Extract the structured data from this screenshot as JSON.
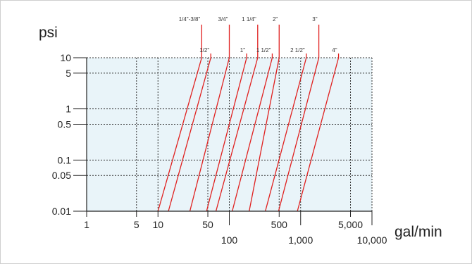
{
  "chart_data": {
    "type": "line",
    "title": "",
    "ylabel": "psi",
    "xlabel": "gal/min",
    "x_scale": "log",
    "y_scale": "log",
    "xlim": [
      1,
      10000
    ],
    "ylim": [
      0.01,
      10
    ],
    "grid": true,
    "x_ticks": [
      {
        "value": 1,
        "label": "1"
      },
      {
        "value": 5,
        "label": "5"
      },
      {
        "value": 10,
        "label": "10"
      },
      {
        "value": 50,
        "label": "50"
      },
      {
        "value": 100,
        "label": "100"
      },
      {
        "value": 500,
        "label": "500"
      },
      {
        "value": 1000,
        "label": "1,000"
      },
      {
        "value": 5000,
        "label": "5,000"
      },
      {
        "value": 10000,
        "label": "10,000"
      }
    ],
    "y_ticks": [
      {
        "value": 0.01,
        "label": "0.01"
      },
      {
        "value": 0.05,
        "label": "0.05"
      },
      {
        "value": 0.1,
        "label": "0.1"
      },
      {
        "value": 0.5,
        "label": "0.5"
      },
      {
        "value": 1,
        "label": "1"
      },
      {
        "value": 5,
        "label": "5"
      },
      {
        "value": 10,
        "label": "10"
      }
    ],
    "series": [
      {
        "name": "1/4\"-3/8\"",
        "points": [
          [
            10,
            0.01
          ],
          [
            41,
            10
          ]
        ],
        "label_row": "upper"
      },
      {
        "name": "1/2\"",
        "points": [
          [
            14,
            0.01
          ],
          [
            55,
            10
          ]
        ],
        "label_row": "lower"
      },
      {
        "name": "3/4\"",
        "points": [
          [
            28,
            0.01
          ],
          [
            100,
            10
          ]
        ],
        "label_row": "upper"
      },
      {
        "name": "1\"",
        "points": [
          [
            48,
            0.01
          ],
          [
            175,
            10
          ]
        ],
        "label_row": "lower"
      },
      {
        "name": "1 1/4\"",
        "points": [
          [
            65,
            0.01
          ],
          [
            250,
            10
          ]
        ],
        "label_row": "upper"
      },
      {
        "name": "1 1/2\"",
        "points": [
          [
            110,
            0.01
          ],
          [
            400,
            10
          ]
        ],
        "label_row": "lower"
      },
      {
        "name": "2\"",
        "points": [
          [
            190,
            0.01
          ],
          [
            500,
            10
          ]
        ],
        "label_row": "upper"
      },
      {
        "name": "2 1/2\"",
        "points": [
          [
            320,
            0.01
          ],
          [
            1200,
            10
          ]
        ],
        "label_row": "lower"
      },
      {
        "name": "3\"",
        "points": [
          [
            490,
            0.01
          ],
          [
            1800,
            10
          ]
        ],
        "label_row": "upper"
      },
      {
        "name": "4\"",
        "points": [
          [
            900,
            0.01
          ],
          [
            3400,
            10
          ]
        ],
        "label_row": "lower"
      }
    ],
    "colors": {
      "plot_background": "#e9f4f9",
      "line": "#e0201f",
      "grid": "#333333",
      "axis": "#222222"
    }
  }
}
